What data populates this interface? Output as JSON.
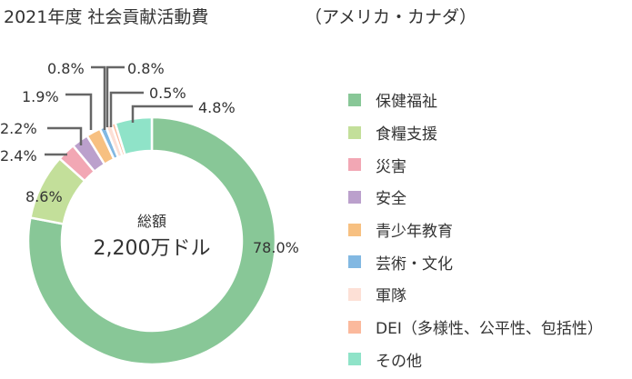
{
  "chart_data": {
    "type": "pie",
    "style": "donut",
    "title": "2021年度 社会貢献活動費",
    "subtitle": "（アメリカ・カナダ）",
    "center_label": "総額",
    "center_value": "2,200万ドル",
    "unit": "%",
    "legend_position": "right",
    "slices": [
      {
        "label": "保健福祉",
        "value": 78.0,
        "value_label": "78.0%",
        "color": "#88c797"
      },
      {
        "label": "食糧支援",
        "value": 8.6,
        "value_label": "8.6%",
        "color": "#c3df9a"
      },
      {
        "label": "災害",
        "value": 2.4,
        "value_label": "2.4%",
        "color": "#f2a7b4"
      },
      {
        "label": "安全",
        "value": 2.2,
        "value_label": "2.2%",
        "color": "#bba0cc"
      },
      {
        "label": "青少年教育",
        "value": 1.9,
        "value_label": "1.9%",
        "color": "#f7c081"
      },
      {
        "label": "芸術・文化",
        "value": 0.8,
        "value_label": "0.8%",
        "color": "#82b8e2"
      },
      {
        "label": "軍隊",
        "value": 0.8,
        "value_label": "0.8%",
        "color": "#fde0d6"
      },
      {
        "label": "DEI（多様性、公平性、包括性）",
        "value": 0.5,
        "value_label": "0.5%",
        "color": "#fbb99c"
      },
      {
        "label": "その他",
        "value": 4.8,
        "value_label": "4.8%",
        "color": "#8fe3c8"
      }
    ]
  }
}
